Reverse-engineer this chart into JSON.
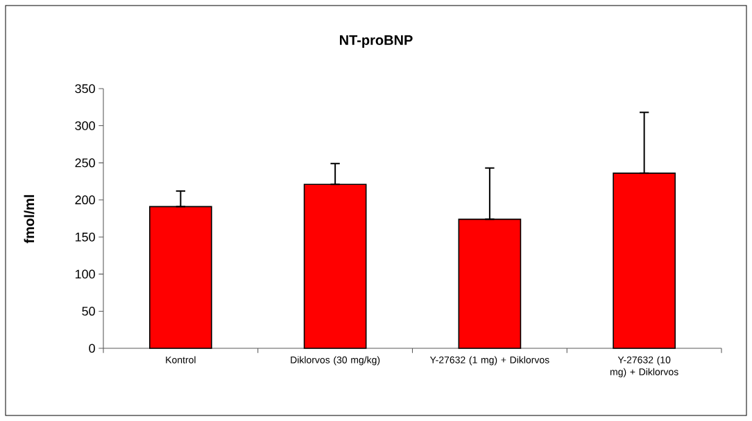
{
  "chart_data": {
    "type": "bar",
    "title": "NT-proBNP",
    "ylabel": "fmol/ml",
    "categories": [
      "Kontrol",
      "Diklorvos (30 mg/kg)",
      "Y-27632 (1 mg) + Diklorvos",
      "Y-27632 (10 mg) + Diklorvos"
    ],
    "values": [
      191,
      221,
      174,
      236
    ],
    "errors": [
      [
        191,
        212
      ],
      [
        221,
        249
      ],
      [
        174,
        243
      ],
      [
        236,
        318
      ]
    ],
    "color": "#ff0000",
    "ylim": [
      0,
      350
    ],
    "yticks": [
      0,
      50,
      100,
      150,
      200,
      250,
      300,
      350
    ]
  }
}
